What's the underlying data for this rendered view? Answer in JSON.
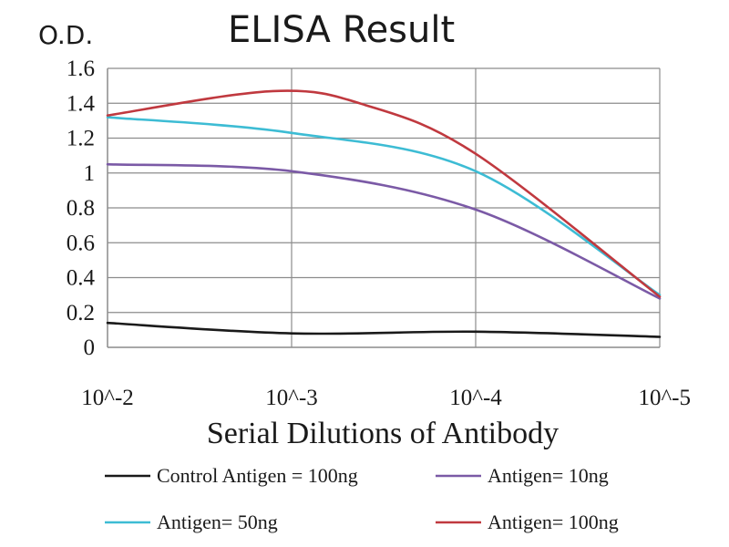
{
  "chart_data": {
    "type": "line",
    "title": "ELISA Result",
    "ylabel": "O.D.",
    "xlabel": "Serial Dilutions of Antibody",
    "categories": [
      "10^-2",
      "10^-3",
      "10^-4",
      "10^-5"
    ],
    "ylim": [
      0,
      1.6
    ],
    "yticks": [
      0,
      0.2,
      0.4,
      0.6,
      0.8,
      1,
      1.2,
      1.4,
      1.6
    ],
    "ytick_labels": [
      "0",
      "0.2",
      "0.4",
      "0.6",
      "0.8",
      "1",
      "1.2",
      "1.4",
      "1.6"
    ],
    "grid": true,
    "legend_position": "bottom",
    "series": [
      {
        "name": "Control Antigen = 100ng",
        "color": "#1a1a1a",
        "x": [
          0,
          1,
          2,
          3
        ],
        "values": [
          0.14,
          0.08,
          0.09,
          0.06
        ]
      },
      {
        "name": "Antigen= 10ng",
        "color": "#7b5aa6",
        "x": [
          0,
          1,
          2,
          3
        ],
        "values": [
          1.05,
          1.01,
          0.79,
          0.28
        ]
      },
      {
        "name": "Antigen= 50ng",
        "color": "#3dbcd4",
        "x": [
          0,
          1,
          2,
          3
        ],
        "values": [
          1.32,
          1.23,
          1.01,
          0.3
        ]
      },
      {
        "name": "Antigen= 100ng",
        "color": "#c0393f",
        "x": [
          0,
          0.9,
          1.4,
          2,
          3
        ],
        "values": [
          1.33,
          1.47,
          1.39,
          1.11,
          0.29
        ]
      }
    ]
  }
}
